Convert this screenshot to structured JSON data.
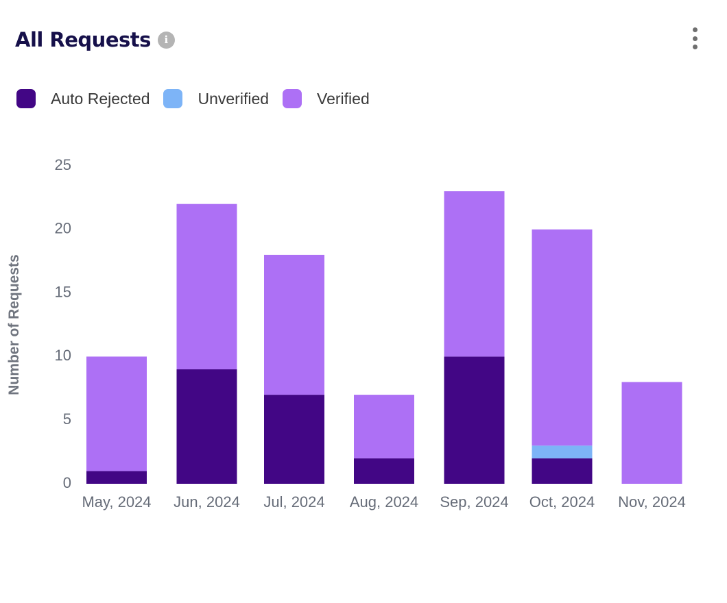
{
  "header": {
    "title": "All Requests",
    "info_glyph": "i"
  },
  "icons": {
    "info": "info-icon",
    "menu": "kebab-menu-icon"
  },
  "chart_data": {
    "type": "bar",
    "stacked": true,
    "categories": [
      "May, 2024",
      "Jun, 2024",
      "Jul, 2024",
      "Aug, 2024",
      "Sep, 2024",
      "Oct, 2024",
      "Nov, 2024"
    ],
    "series": [
      {
        "name": "Auto Rejected",
        "color": "#420685",
        "values": [
          1,
          9,
          7,
          2,
          10,
          2,
          0
        ]
      },
      {
        "name": "Unverified",
        "color": "#7db4f7",
        "values": [
          0,
          0,
          0,
          0,
          0,
          1,
          0
        ]
      },
      {
        "name": "Verified",
        "color": "#ad70f5",
        "values": [
          9,
          13,
          11,
          5,
          13,
          17,
          8
        ]
      }
    ],
    "ylabel": "Number of Requests",
    "xlabel": "",
    "ylim": [
      0,
      25
    ],
    "yticks": [
      0,
      5,
      10,
      15,
      20,
      25
    ],
    "grid": false,
    "legend_position": "top-left"
  }
}
